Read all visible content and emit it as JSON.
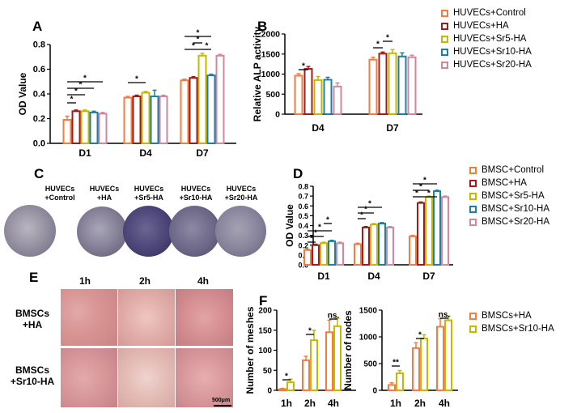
{
  "panels": {
    "A": {
      "label": "A",
      "ylabel": "OD Value",
      "ylim": [
        0,
        0.8
      ],
      "yticks": [
        "0.0",
        "0.2",
        "0.4",
        "0.6",
        "0.8"
      ],
      "categories": [
        "D1",
        "D4",
        "D7"
      ],
      "series": [
        {
          "name": "HUVECs+Control",
          "values": [
            0.19,
            0.37,
            0.51
          ]
        },
        {
          "name": "HUVECs+HA",
          "values": [
            0.26,
            0.38,
            0.53
          ]
        },
        {
          "name": "HUVECs+Sr5-HA",
          "values": [
            0.26,
            0.41,
            0.71
          ]
        },
        {
          "name": "HUVECs+Sr10-HA",
          "values": [
            0.25,
            0.38,
            0.55
          ]
        },
        {
          "name": "HUVECs+Sr20-HA",
          "values": [
            0.24,
            0.38,
            0.71
          ]
        }
      ],
      "errors": [
        [
          0.03,
          0.01,
          0.01
        ],
        [
          0.01,
          0.01,
          0.01
        ],
        [
          0.01,
          0.01,
          0.02
        ],
        [
          0.01,
          0.05,
          0.01
        ],
        [
          0.01,
          0.01,
          0.01
        ]
      ],
      "star": "*"
    },
    "B": {
      "label": "B",
      "ylabel": "Relative ALP activity",
      "ylim": [
        0,
        2000
      ],
      "yticks": [
        "0",
        "500",
        "1000",
        "1500",
        "2000"
      ],
      "categories": [
        "D4",
        "D7"
      ],
      "values": [
        [
          960,
          1360
        ],
        [
          1130,
          1510
        ],
        [
          850,
          1520
        ],
        [
          860,
          1440
        ],
        [
          690,
          1420
        ]
      ],
      "errors": [
        [
          50,
          60
        ],
        [
          60,
          40
        ],
        [
          90,
          90
        ],
        [
          60,
          90
        ],
        [
          90,
          50
        ]
      ],
      "star": "*"
    },
    "C": {
      "label": "C",
      "cultures": [
        {
          "line1": "HUVECs",
          "line2": "+Control"
        },
        {
          "line1": "HUVECs",
          "line2": "+HA"
        },
        {
          "line1": "HUVECs",
          "line2": "+Sr5-HA"
        },
        {
          "line1": "HUVECs",
          "line2": "+Sr10-HA"
        },
        {
          "line1": "HUVECs",
          "line2": "+Sr20-HA"
        }
      ]
    },
    "D": {
      "label": "D",
      "ylabel": "OD Value",
      "ylim": [
        0,
        0.8
      ],
      "yticks": [
        "0.0",
        "0.1",
        "0.2",
        "0.3",
        "0.4",
        "0.5",
        "0.6",
        "0.7",
        "0.8"
      ],
      "categories": [
        "D1",
        "D4",
        "D7"
      ],
      "series": [
        {
          "name": "BMSC+Control",
          "values": [
            0.15,
            0.21,
            0.29
          ]
        },
        {
          "name": "BMSC+HA",
          "values": [
            0.2,
            0.38,
            0.63
          ]
        },
        {
          "name": "BMSC+Sr5-HA",
          "values": [
            0.22,
            0.41,
            0.69
          ]
        },
        {
          "name": "BMSC+Sr10-HA",
          "values": [
            0.24,
            0.42,
            0.75
          ]
        },
        {
          "name": "BMSC+Sr20-HA",
          "values": [
            0.22,
            0.38,
            0.69
          ]
        }
      ],
      "errors": [
        [
          0.01,
          0.01,
          0.01
        ],
        [
          0.01,
          0.01,
          0.01
        ],
        [
          0.01,
          0.01,
          0.01
        ],
        [
          0.01,
          0.01,
          0.01
        ],
        [
          0.01,
          0.01,
          0.01
        ]
      ],
      "star": "*"
    },
    "E": {
      "label": "E",
      "timepoints": [
        "1h",
        "2h",
        "4h"
      ],
      "rows": [
        {
          "line1": "BMSCs",
          "line2": "+HA"
        },
        {
          "line1": "BMSCs",
          "line2": "+Sr10-HA"
        }
      ],
      "scale": "500μm"
    },
    "F": {
      "label": "F",
      "legend": [
        "BMSCs+HA",
        "BMSCs+Sr10-HA"
      ],
      "meshes": {
        "ylabel": "Number of meshes",
        "ylim": [
          0,
          200
        ],
        "yticks": [
          "0",
          "50",
          "100",
          "150",
          "200"
        ],
        "categories": [
          "1h",
          "2h",
          "4h"
        ],
        "values": [
          [
            3,
            75,
            145
          ],
          [
            20,
            125,
            160
          ]
        ],
        "errors": [
          [
            2,
            10,
            30
          ],
          [
            8,
            25,
            20
          ]
        ],
        "sig": [
          "*",
          "*",
          "ns."
        ]
      },
      "nodes": {
        "ylabel": "Number of nodes",
        "ylim": [
          0,
          1500
        ],
        "yticks": [
          "0",
          "500",
          "1000",
          "1500"
        ],
        "categories": [
          "1h",
          "2h",
          "4h"
        ],
        "values": [
          [
            100,
            790,
            1190
          ],
          [
            320,
            970,
            1310
          ]
        ],
        "errors": [
          [
            40,
            100,
            150
          ],
          [
            50,
            70,
            80
          ]
        ],
        "sig": [
          "**",
          "*",
          "ns."
        ]
      }
    }
  },
  "colors": [
    "#F47C3C",
    "#A01C1C",
    "#C6B800",
    "#1C7FA6",
    "#D4869C"
  ],
  "colorsF": [
    "#F47C3C",
    "#C6B800"
  ]
}
